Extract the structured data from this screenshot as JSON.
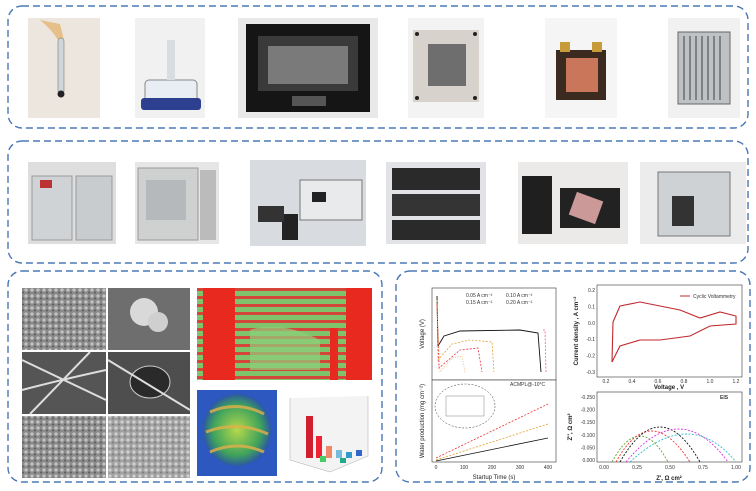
{
  "voltage_plot": {
    "y_label": "Voltage (V)",
    "legend": [
      "0.05 A cm⁻²",
      "0.10 A cm⁻²",
      "0.15 A cm⁻²",
      "0.20 A cm⁻²"
    ]
  },
  "water_plot": {
    "annotation": "ACMPL@-10°C",
    "y_label": "Water production (mg cm⁻²)",
    "x_label": "Startup Time (s)",
    "x_ticks": [
      "0",
      "100",
      "200",
      "300",
      "400"
    ]
  },
  "cv_plot": {
    "legend": "Cyclic Voltammetry",
    "x_label": "Voltage , V",
    "y_label": "Current density , A cm⁻²",
    "x_ticks": [
      "0.2",
      "0.4",
      "0.6",
      "0.8",
      "1.0",
      "1.2"
    ],
    "y_ticks": [
      "0.2",
      "0.1",
      "0.0",
      "-0.1",
      "-0.2",
      "-0.3"
    ]
  },
  "eis_plot": {
    "legend": "EIS",
    "x_label": "Z', Ω cm²",
    "y_label": "Z'', Ω cm²",
    "x_ticks": [
      "0.00",
      "0.25",
      "0.50",
      "0.75",
      "1.00"
    ],
    "y_ticks": [
      "-0.250",
      "-0.200",
      "-0.150",
      "-0.100",
      "-0.050",
      "0.000"
    ]
  }
}
